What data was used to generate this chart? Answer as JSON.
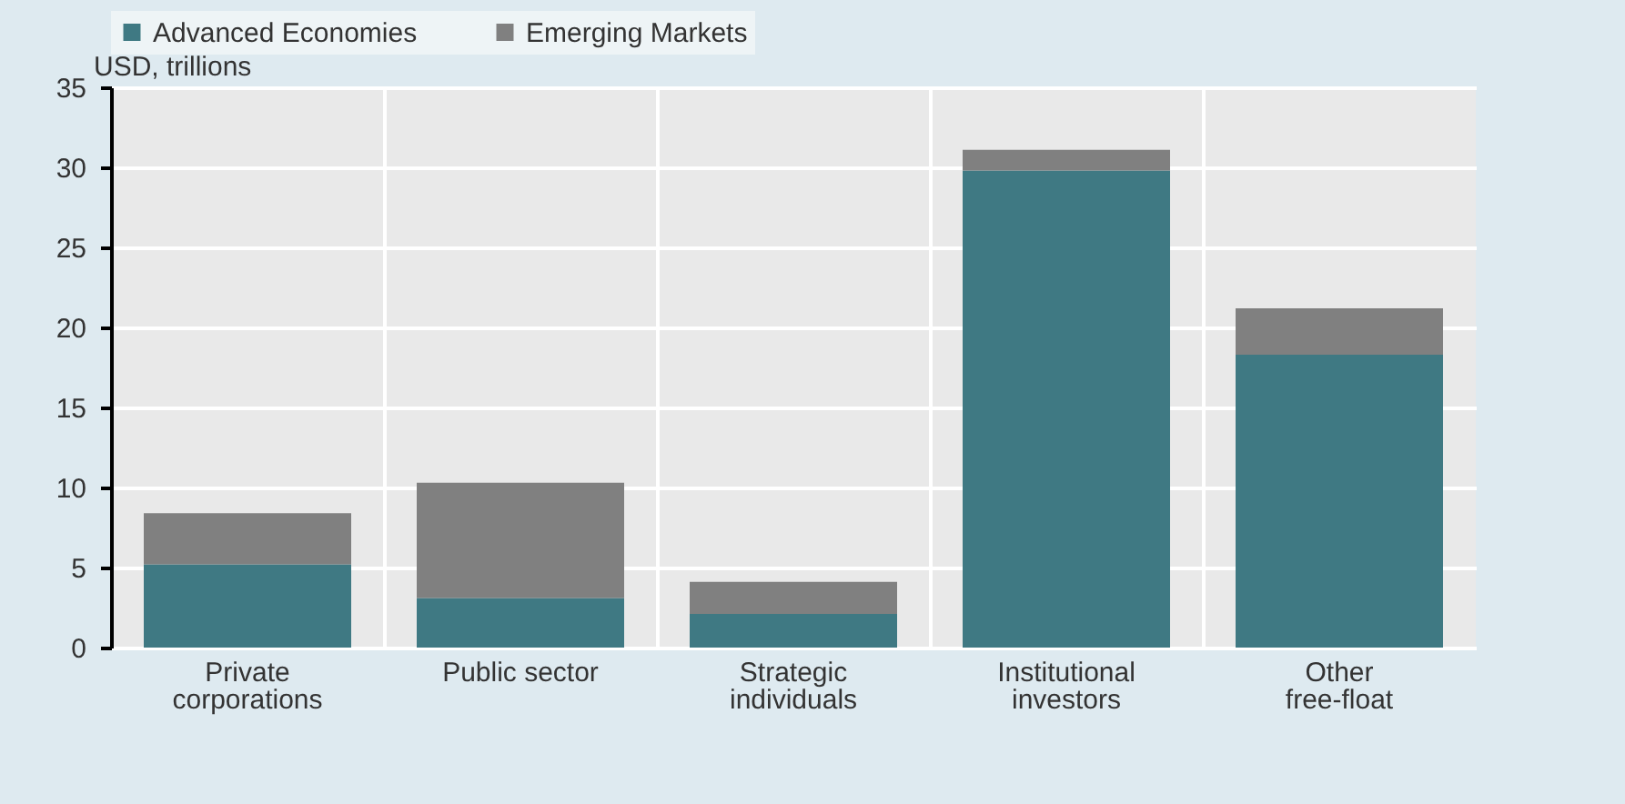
{
  "chart_data": {
    "type": "bar",
    "stacked": true,
    "ylabel": "USD, trillions",
    "categories": [
      "Private corporations",
      "Public sector",
      "Strategic individuals",
      "Institutional investors",
      "Other free-float"
    ],
    "series": [
      {
        "name": "Advanced Economies",
        "color": "#3f7983",
        "values": [
          5.2,
          3.1,
          2.1,
          29.8,
          18.3
        ]
      },
      {
        "name": "Emerging Markets",
        "color": "#808080",
        "values": [
          3.2,
          7.2,
          2.0,
          1.3,
          2.9
        ]
      }
    ],
    "ylim": [
      0,
      35
    ],
    "yticks": [
      0,
      5,
      10,
      15,
      20,
      25,
      30,
      35
    ],
    "grid": true,
    "legend": "top"
  }
}
